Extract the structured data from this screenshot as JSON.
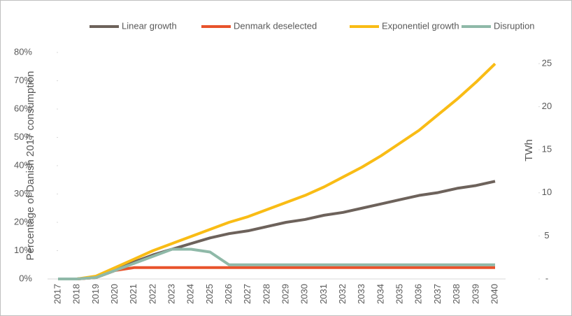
{
  "chart_data": {
    "type": "line",
    "y_label": "Percentage of Danish 2017 consumption",
    "y2_label": "TWh",
    "categories": [
      "2017",
      "2018",
      "2019",
      "2020",
      "2021",
      "2022",
      "2023",
      "2024",
      "2025",
      "2026",
      "2027",
      "2028",
      "2029",
      "2030",
      "2031",
      "2032",
      "2033",
      "2034",
      "2035",
      "2036",
      "2037",
      "2038",
      "2039",
      "2040"
    ],
    "series": [
      {
        "name": "Linear growth",
        "color": "#6d625b",
        "values": [
          0,
          0,
          0.5,
          3,
          6,
          8.5,
          10.5,
          12.5,
          14.5,
          16,
          17,
          18.5,
          20,
          21,
          22.5,
          23.5,
          25,
          26.5,
          28,
          29.5,
          30.5,
          32,
          33,
          34.5
        ]
      },
      {
        "name": "Denmark deselected",
        "color": "#e8532b",
        "values": [
          0,
          0,
          0.5,
          3,
          4,
          4,
          4,
          4,
          4,
          4,
          4,
          4,
          4,
          4,
          4,
          4,
          4,
          4,
          4,
          4,
          4,
          4,
          4,
          4
        ]
      },
      {
        "name": "Exponentiel growth",
        "color": "#f9bc15",
        "values": [
          0,
          0,
          1,
          4,
          7,
          10,
          12.5,
          15,
          17.5,
          20,
          22,
          24.5,
          27,
          29.5,
          32.5,
          36,
          39.5,
          43.5,
          48,
          52.5,
          58,
          63.5,
          69.5,
          76
        ]
      },
      {
        "name": "Disruption",
        "color": "#8fb9a8",
        "values": [
          0,
          0,
          0.5,
          3,
          5.5,
          8,
          10.5,
          10.5,
          9.5,
          5,
          5,
          5,
          5,
          5,
          5,
          5,
          5,
          5,
          5,
          5,
          5,
          5,
          5,
          5
        ]
      }
    ],
    "ylim": [
      0,
      80
    ],
    "yticks": [
      {
        "value": 0,
        "label": "0%"
      },
      {
        "value": 10,
        "label": "10%"
      },
      {
        "value": 20,
        "label": "20%"
      },
      {
        "value": 30,
        "label": "30%"
      },
      {
        "value": 40,
        "label": "40%"
      },
      {
        "value": 50,
        "label": "50%"
      },
      {
        "value": 60,
        "label": "60%"
      },
      {
        "value": 70,
        "label": "70%"
      },
      {
        "value": 80,
        "label": "80%"
      }
    ],
    "y2lim": [
      0,
      26.3
    ],
    "y2ticks": [
      {
        "value": 0,
        "label": "-"
      },
      5,
      10,
      15,
      20,
      25
    ],
    "legend": "top"
  }
}
